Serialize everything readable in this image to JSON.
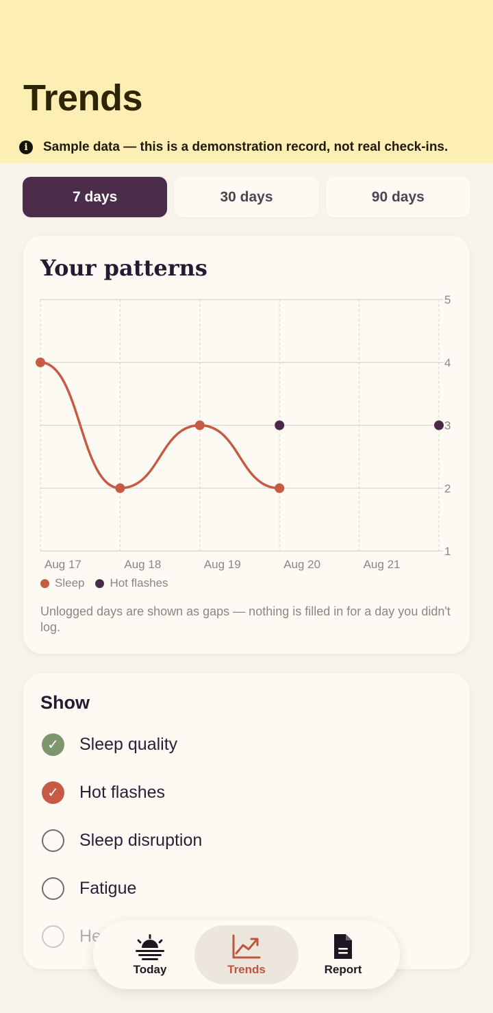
{
  "header": {
    "title": "Trends",
    "banner_icon": "info-icon",
    "banner_text": "Sample data — this is a demonstration record, not real check-ins."
  },
  "ranges": [
    {
      "label": "7 days",
      "selected": true
    },
    {
      "label": "30 days",
      "selected": false
    },
    {
      "label": "90 days",
      "selected": false
    }
  ],
  "patterns": {
    "title": "Your patterns",
    "note": "Unlogged days are shown as gaps — nothing is filled in for a day you didn't log."
  },
  "chart_data": {
    "type": "line",
    "x": [
      "Aug 17",
      "Aug 18",
      "Aug 19",
      "Aug 20",
      "Aug 21",
      ""
    ],
    "ylim": [
      1,
      5
    ],
    "yticks": [
      "5",
      "4",
      "3",
      "2",
      "1"
    ],
    "series": [
      {
        "name": "Sleep",
        "color": "#c65a45",
        "values": [
          4,
          2,
          3,
          2,
          null,
          null
        ]
      },
      {
        "name": "Hot flashes",
        "color": "#4a2a4a",
        "values": [
          null,
          null,
          null,
          3,
          null,
          3
        ]
      }
    ]
  },
  "show": {
    "title": "Show",
    "items": [
      {
        "label": "Sleep quality",
        "checked": true,
        "color": "#7d966e"
      },
      {
        "label": "Hot flashes",
        "checked": true,
        "color": "#c65a45"
      },
      {
        "label": "Sleep disruption",
        "checked": false
      },
      {
        "label": "Fatigue",
        "checked": false
      },
      {
        "label": "He",
        "checked": false
      }
    ]
  },
  "tabbar": {
    "items": [
      {
        "label": "Today",
        "icon": "sunrise-icon",
        "active": false
      },
      {
        "label": "Trends",
        "icon": "trend-chart-icon",
        "active": true
      },
      {
        "label": "Report",
        "icon": "document-icon",
        "active": false
      }
    ]
  }
}
